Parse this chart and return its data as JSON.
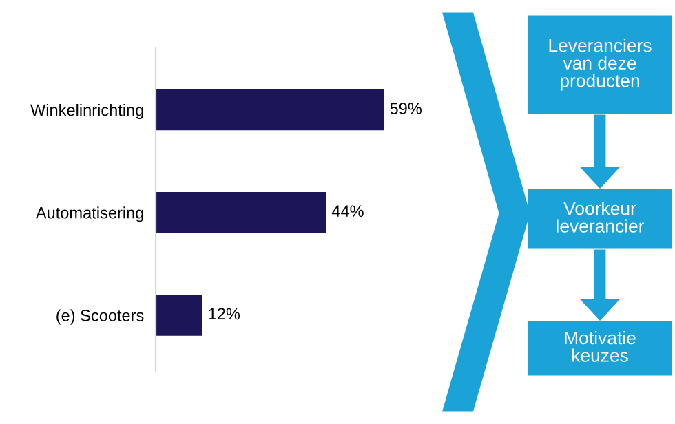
{
  "chart_data": [
    {
      "type": "bar",
      "orientation": "horizontal",
      "categories": [
        "Winkelinrichting",
        "Automatisering",
        "(e) Scooters"
      ],
      "values": [
        59,
        44,
        12
      ],
      "value_labels": [
        "59%",
        "44%",
        "12%"
      ],
      "color": "#1c1558",
      "grid": false,
      "legend": false
    },
    {
      "type": "other",
      "color": "#1ba3d8",
      "annotations": [
        "Leveranciers\nvan deze\nproducten",
        "Voorkeur\nleverancier",
        "Motivatie\nkeuzes"
      ]
    }
  ]
}
